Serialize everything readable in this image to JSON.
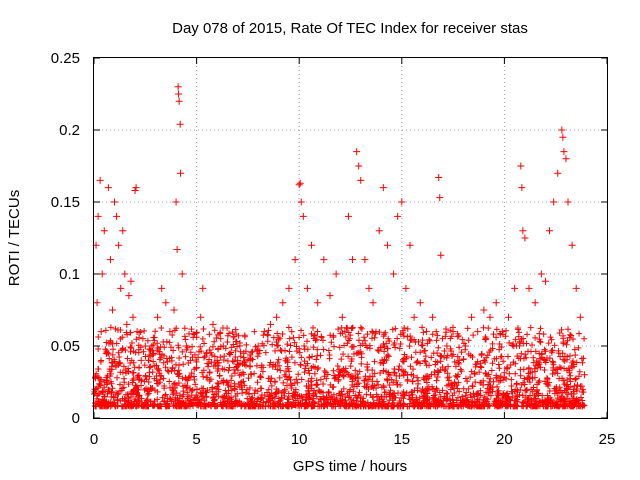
{
  "chart_data": {
    "type": "scatter",
    "title": "Day 078 of 2015, Rate Of TEC Index for receiver stas",
    "xlabel": "GPS time / hours",
    "ylabel": "ROTI / TECUs",
    "xlim": [
      0,
      25
    ],
    "ylim": [
      0,
      0.25
    ],
    "x_ticks": [
      {
        "value": 0,
        "label": "0"
      },
      {
        "value": 5,
        "label": "5"
      },
      {
        "value": 10,
        "label": "10"
      },
      {
        "value": 15,
        "label": "15"
      },
      {
        "value": 20,
        "label": "20"
      },
      {
        "value": 25,
        "label": "25"
      }
    ],
    "y_ticks": [
      {
        "value": 0,
        "label": "0"
      },
      {
        "value": 0.05,
        "label": "0.05"
      },
      {
        "value": 0.1,
        "label": "0.1"
      },
      {
        "value": 0.15,
        "label": "0.15"
      },
      {
        "value": 0.2,
        "label": "0.2"
      },
      {
        "value": 0.25,
        "label": "0.25"
      }
    ],
    "grid": true,
    "marker": "+",
    "color": "#ff0000",
    "series": [
      {
        "values": [
          [
            0.05,
            0.02
          ],
          [
            0.1,
            0.12
          ],
          [
            0.15,
            0.08
          ],
          [
            0.2,
            0.14
          ],
          [
            0.3,
            0.165
          ],
          [
            0.35,
            0.06
          ],
          [
            0.4,
            0.1
          ],
          [
            0.5,
            0.13
          ],
          [
            0.6,
            0.045
          ],
          [
            0.7,
            0.16
          ],
          [
            0.8,
            0.11
          ],
          [
            0.9,
            0.075
          ],
          [
            1.0,
            0.15
          ],
          [
            1.1,
            0.14
          ],
          [
            1.2,
            0.12
          ],
          [
            1.3,
            0.09
          ],
          [
            1.4,
            0.13
          ],
          [
            1.5,
            0.1
          ],
          [
            1.6,
            0.065
          ],
          [
            1.7,
            0.085
          ],
          [
            1.8,
            0.095
          ],
          [
            1.9,
            0.07
          ],
          [
            2.0,
            0.158
          ],
          [
            2.05,
            0.16
          ],
          [
            2.1,
            0.06
          ],
          [
            2.3,
            0.04
          ],
          [
            2.5,
            0.05
          ],
          [
            2.7,
            0.035
          ],
          [
            2.9,
            0.045
          ],
          [
            3.1,
            0.07
          ],
          [
            3.3,
            0.09
          ],
          [
            3.5,
            0.08
          ],
          [
            3.7,
            0.06
          ],
          [
            3.9,
            0.075
          ],
          [
            4.0,
            0.15
          ],
          [
            4.05,
            0.117
          ],
          [
            4.1,
            0.23
          ],
          [
            4.12,
            0.225
          ],
          [
            4.15,
            0.22
          ],
          [
            4.2,
            0.204
          ],
          [
            4.22,
            0.17
          ],
          [
            4.3,
            0.1
          ],
          [
            4.5,
            0.05
          ],
          [
            4.7,
            0.04
          ],
          [
            5.0,
            0.035
          ],
          [
            5.2,
            0.07
          ],
          [
            5.3,
            0.09
          ],
          [
            5.5,
            0.045
          ],
          [
            5.8,
            0.065
          ],
          [
            6.0,
            0.04
          ],
          [
            6.3,
            0.05
          ],
          [
            6.6,
            0.035
          ],
          [
            7.0,
            0.04
          ],
          [
            7.3,
            0.045
          ],
          [
            7.6,
            0.04
          ],
          [
            8.0,
            0.05
          ],
          [
            8.3,
            0.06
          ],
          [
            8.6,
            0.065
          ],
          [
            8.9,
            0.07
          ],
          [
            9.2,
            0.08
          ],
          [
            9.5,
            0.09
          ],
          [
            9.8,
            0.11
          ],
          [
            10.0,
            0.162
          ],
          [
            10.05,
            0.163
          ],
          [
            10.1,
            0.15
          ],
          [
            10.2,
            0.14
          ],
          [
            10.4,
            0.09
          ],
          [
            10.6,
            0.12
          ],
          [
            10.9,
            0.08
          ],
          [
            11.2,
            0.11
          ],
          [
            11.5,
            0.085
          ],
          [
            11.8,
            0.1
          ],
          [
            12.1,
            0.07
          ],
          [
            12.4,
            0.14
          ],
          [
            12.6,
            0.11
          ],
          [
            12.8,
            0.185
          ],
          [
            12.9,
            0.175
          ],
          [
            13.0,
            0.165
          ],
          [
            13.2,
            0.11
          ],
          [
            13.4,
            0.09
          ],
          [
            13.6,
            0.08
          ],
          [
            13.9,
            0.13
          ],
          [
            14.1,
            0.16
          ],
          [
            14.3,
            0.12
          ],
          [
            14.6,
            0.1
          ],
          [
            14.8,
            0.14
          ],
          [
            15.0,
            0.15
          ],
          [
            15.2,
            0.09
          ],
          [
            15.4,
            0.12
          ],
          [
            15.6,
            0.07
          ],
          [
            15.9,
            0.08
          ],
          [
            16.2,
            0.06
          ],
          [
            16.5,
            0.07
          ],
          [
            16.8,
            0.167
          ],
          [
            16.85,
            0.153
          ],
          [
            16.9,
            0.113
          ],
          [
            17.2,
            0.05
          ],
          [
            17.5,
            0.06
          ],
          [
            17.8,
            0.04
          ],
          [
            18.1,
            0.05
          ],
          [
            18.4,
            0.07
          ],
          [
            18.7,
            0.06
          ],
          [
            19.0,
            0.075
          ],
          [
            19.3,
            0.07
          ],
          [
            19.6,
            0.08
          ],
          [
            19.9,
            0.06
          ],
          [
            20.2,
            0.07
          ],
          [
            20.5,
            0.09
          ],
          [
            20.8,
            0.175
          ],
          [
            20.85,
            0.16
          ],
          [
            20.9,
            0.13
          ],
          [
            21.0,
            0.125
          ],
          [
            21.2,
            0.09
          ],
          [
            21.5,
            0.08
          ],
          [
            21.8,
            0.1
          ],
          [
            22.0,
            0.095
          ],
          [
            22.2,
            0.13
          ],
          [
            22.4,
            0.15
          ],
          [
            22.6,
            0.17
          ],
          [
            22.8,
            0.2
          ],
          [
            22.85,
            0.195
          ],
          [
            22.9,
            0.185
          ],
          [
            23.0,
            0.18
          ],
          [
            23.1,
            0.15
          ],
          [
            23.3,
            0.12
          ],
          [
            23.5,
            0.09
          ],
          [
            23.7,
            0.07
          ],
          [
            23.9,
            0.03
          ]
        ]
      }
    ]
  }
}
